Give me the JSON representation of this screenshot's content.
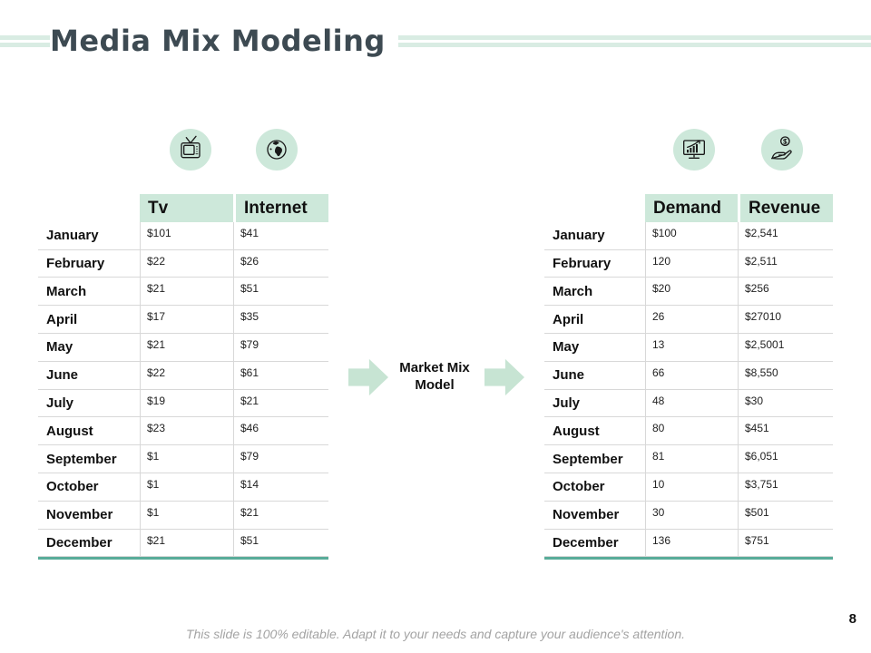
{
  "title": "Media Mix Modeling",
  "center": {
    "label": "Market Mix Model"
  },
  "footer": "This slide is 100% editable. Adapt it to your needs and capture your audience's attention.",
  "page_number": "8",
  "colors": {
    "mint_light": "#d9ece3",
    "mint_header": "#cde8da",
    "mint_arrow": "#c7e4d3",
    "teal_border": "#58ac99",
    "title_text": "#3d4a52"
  },
  "icons": {
    "left": [
      "tv-icon",
      "globe-icon"
    ],
    "right": [
      "monitor-chart-icon",
      "hand-dollar-icon"
    ]
  },
  "left_table": {
    "columns": [
      "",
      "Tv",
      "Internet"
    ],
    "rows": [
      [
        "January",
        "$101",
        "$41"
      ],
      [
        "February",
        "$22",
        "$26"
      ],
      [
        "March",
        "$21",
        "$51"
      ],
      [
        "April",
        "$17",
        "$35"
      ],
      [
        "May",
        "$21",
        "$79"
      ],
      [
        "June",
        "$22",
        "$61"
      ],
      [
        "July",
        "$19",
        "$21"
      ],
      [
        "August",
        "$23",
        "$46"
      ],
      [
        "September",
        "$1",
        "$79"
      ],
      [
        "October",
        "$1",
        "$14"
      ],
      [
        "November",
        "$1",
        "$21"
      ],
      [
        "December",
        "$21",
        "$51"
      ]
    ]
  },
  "right_table": {
    "columns": [
      "",
      "Demand",
      "Revenue"
    ],
    "rows": [
      [
        "January",
        "$100",
        "$2,541"
      ],
      [
        "February",
        "120",
        "$2,511"
      ],
      [
        "March",
        "$20",
        "$256"
      ],
      [
        "April",
        "26",
        "$27010"
      ],
      [
        "May",
        "13",
        "$2,5001"
      ],
      [
        "June",
        "66",
        "$8,550"
      ],
      [
        "July",
        "48",
        "$30"
      ],
      [
        "August",
        "80",
        "$451"
      ],
      [
        "September",
        "81",
        "$6,051"
      ],
      [
        "October",
        "10",
        "$3,751"
      ],
      [
        "November",
        "30",
        "$501"
      ],
      [
        "December",
        "136",
        "$751"
      ]
    ]
  }
}
